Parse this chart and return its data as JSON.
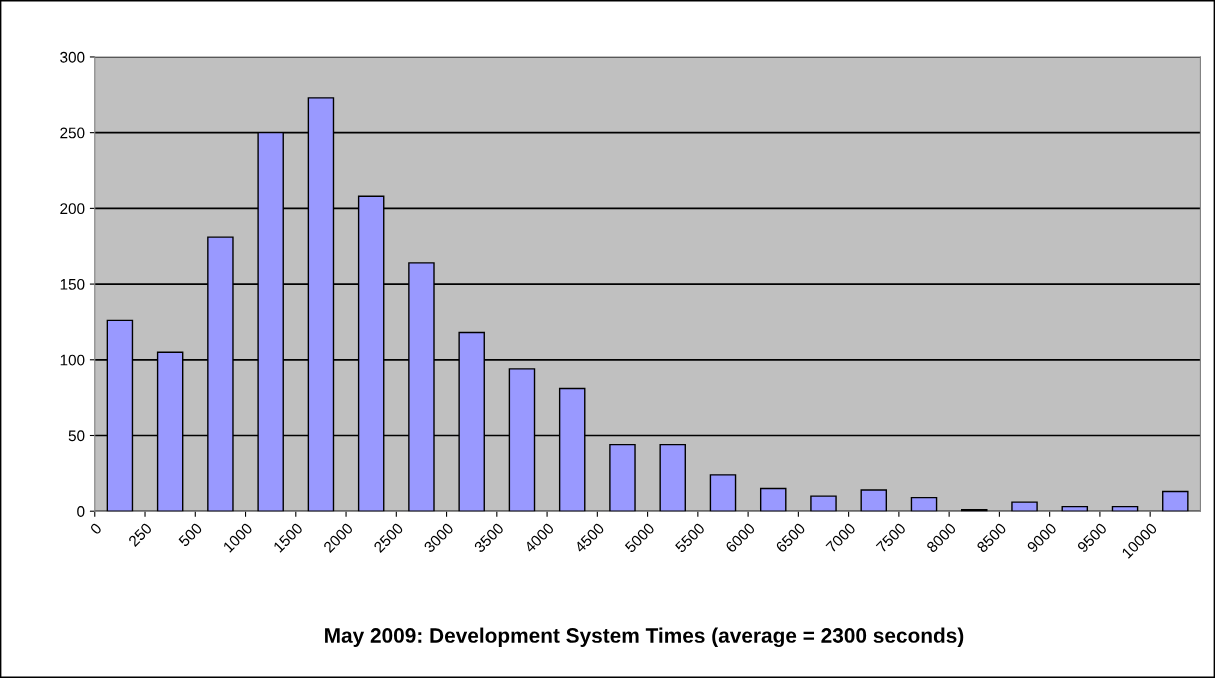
{
  "chart_data": {
    "type": "bar",
    "title": "May 2009: Development System Times (average = 2300 seconds)",
    "categories": [
      "0",
      "250",
      "500",
      "1000",
      "1500",
      "2000",
      "2500",
      "3000",
      "3500",
      "4000",
      "4500",
      "5000",
      "5500",
      "6000",
      "6500",
      "7000",
      "7500",
      "8000",
      "8500",
      "9000",
      "9500",
      "10000"
    ],
    "values": [
      126,
      105,
      181,
      250,
      273,
      208,
      164,
      118,
      94,
      81,
      44,
      44,
      24,
      15,
      10,
      14,
      9,
      1,
      6,
      3,
      3,
      13
    ],
    "color": "#9999ff",
    "ylim": [
      0,
      300
    ],
    "yticks": [
      0,
      50,
      100,
      150,
      200,
      250,
      300
    ],
    "grid": "y",
    "legend": false
  }
}
